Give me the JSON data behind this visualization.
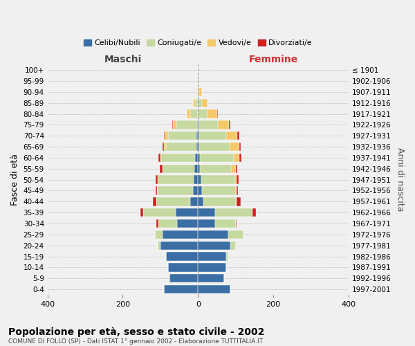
{
  "age_groups": [
    "0-4",
    "5-9",
    "10-14",
    "15-19",
    "20-24",
    "25-29",
    "30-34",
    "35-39",
    "40-44",
    "45-49",
    "50-54",
    "55-59",
    "60-64",
    "65-69",
    "70-74",
    "75-79",
    "80-84",
    "85-89",
    "90-94",
    "95-99",
    "100+"
  ],
  "birth_years": [
    "1997-2001",
    "1992-1996",
    "1987-1991",
    "1982-1986",
    "1977-1981",
    "1972-1976",
    "1967-1971",
    "1962-1966",
    "1957-1961",
    "1952-1956",
    "1947-1951",
    "1942-1946",
    "1937-1941",
    "1932-1936",
    "1927-1931",
    "1922-1926",
    "1917-1921",
    "1912-1916",
    "1907-1911",
    "1902-1906",
    "≤ 1901"
  ],
  "colors": {
    "celibe": "#3a6ea5",
    "coniugato": "#c5d9a0",
    "vedovo": "#f5c96a",
    "divorziato": "#cc2222"
  },
  "maschi_celibe": [
    90,
    75,
    80,
    85,
    100,
    95,
    55,
    60,
    20,
    14,
    12,
    10,
    8,
    5,
    5,
    2,
    0,
    0,
    0,
    0,
    0
  ],
  "maschi_coniugato": [
    0,
    0,
    0,
    0,
    8,
    20,
    50,
    85,
    90,
    95,
    95,
    85,
    90,
    80,
    75,
    55,
    20,
    8,
    2,
    1,
    0
  ],
  "maschi_vedovo": [
    0,
    0,
    0,
    0,
    0,
    0,
    0,
    0,
    0,
    0,
    0,
    0,
    2,
    5,
    8,
    10,
    10,
    5,
    2,
    0,
    0
  ],
  "maschi_divorziato": [
    0,
    0,
    0,
    0,
    0,
    0,
    5,
    8,
    10,
    4,
    5,
    6,
    5,
    5,
    2,
    2,
    0,
    0,
    0,
    0,
    0
  ],
  "femmine_nubile": [
    85,
    70,
    75,
    75,
    85,
    80,
    45,
    45,
    15,
    10,
    8,
    5,
    5,
    4,
    4,
    2,
    0,
    0,
    0,
    0,
    0
  ],
  "femmine_coniugata": [
    0,
    0,
    0,
    5,
    15,
    40,
    55,
    100,
    85,
    90,
    90,
    85,
    90,
    80,
    70,
    50,
    25,
    10,
    3,
    2,
    0
  ],
  "femmine_vedova": [
    0,
    0,
    0,
    0,
    0,
    0,
    0,
    0,
    2,
    2,
    5,
    10,
    15,
    25,
    30,
    30,
    25,
    15,
    8,
    2,
    0
  ],
  "femmine_divorziata": [
    0,
    0,
    0,
    0,
    0,
    0,
    2,
    8,
    12,
    4,
    5,
    5,
    5,
    5,
    5,
    4,
    2,
    0,
    0,
    0,
    0
  ],
  "xlim": 400,
  "title": "Popolazione per età, sesso e stato civile - 2002",
  "subtitle": "COMUNE DI FOLLO (SP) - Dati ISTAT 1° gennaio 2002 - Elaborazione TUTTITALIA.IT",
  "ylabel_left": "Fasce di età",
  "ylabel_right": "Anni di nascita",
  "xlabel_maschi": "Maschi",
  "xlabel_femmine": "Femmine",
  "legend_labels": [
    "Celibi/Nubili",
    "Coniugati/e",
    "Vedovi/e",
    "Divorziati/e"
  ],
  "background_color": "#f0f0f0",
  "bar_height": 0.78
}
